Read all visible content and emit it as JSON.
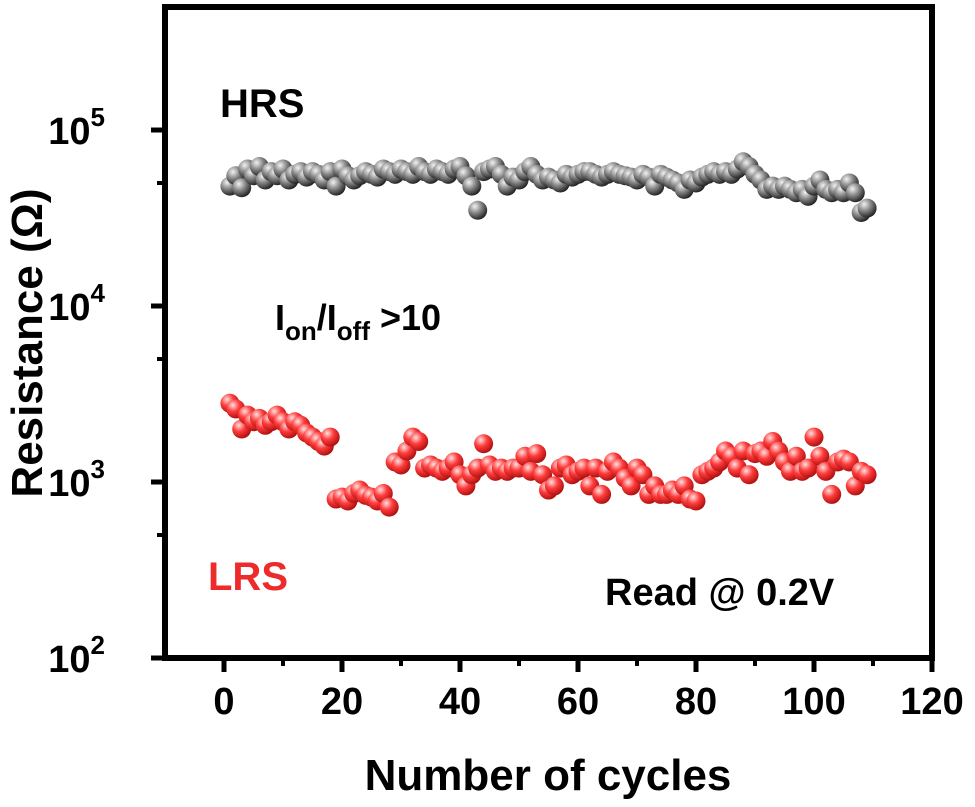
{
  "chart_data": {
    "type": "scatter",
    "title": "",
    "xlabel": "Number of cycles",
    "ylabel": "Resistance (Ω)",
    "xlim": [
      -10,
      120
    ],
    "ylim": [
      100,
      500000
    ],
    "yscale": "log",
    "grid": false,
    "x_ticks": [
      0,
      20,
      40,
      60,
      80,
      100,
      120
    ],
    "y_ticks": [
      {
        "value": 100,
        "base": "10",
        "exp": "2"
      },
      {
        "value": 1000,
        "base": "10",
        "exp": "3"
      },
      {
        "value": 10000,
        "base": "10",
        "exp": "4"
      },
      {
        "value": 100000,
        "base": "10",
        "exp": "5"
      }
    ],
    "series": [
      {
        "name": "HRS",
        "color": "#2b2b2b",
        "x": [
          1,
          2,
          3,
          4,
          5,
          6,
          7,
          8,
          9,
          10,
          11,
          12,
          13,
          14,
          15,
          16,
          17,
          18,
          19,
          20,
          21,
          22,
          23,
          24,
          25,
          26,
          27,
          28,
          29,
          30,
          31,
          32,
          33,
          34,
          35,
          36,
          37,
          38,
          39,
          40,
          41,
          42,
          43,
          44,
          45,
          46,
          47,
          48,
          49,
          50,
          51,
          52,
          53,
          54,
          55,
          56,
          57,
          58,
          59,
          60,
          61,
          62,
          63,
          64,
          65,
          66,
          67,
          68,
          69,
          70,
          71,
          72,
          73,
          74,
          75,
          76,
          77,
          78,
          79,
          80,
          81,
          82,
          83,
          84,
          85,
          86,
          87,
          88,
          89,
          90,
          91,
          92,
          93,
          94,
          95,
          96,
          97,
          98,
          99,
          100,
          101,
          102,
          103,
          104,
          105,
          106,
          107,
          108,
          109
        ],
        "y": [
          48000,
          55000,
          47000,
          60000,
          55000,
          62000,
          52000,
          58000,
          55000,
          60000,
          52000,
          56000,
          58000,
          54000,
          58000,
          56000,
          52000,
          58000,
          48000,
          60000,
          55000,
          52000,
          55000,
          58000,
          56000,
          54000,
          60000,
          58000,
          56000,
          60000,
          58000,
          56000,
          62000,
          58000,
          56000,
          60000,
          58000,
          56000,
          60000,
          62000,
          55000,
          48000,
          35000,
          58000,
          60000,
          62000,
          56000,
          48000,
          54000,
          52000,
          58000,
          62000,
          56000,
          52000,
          54000,
          52000,
          50000,
          56000,
          54000,
          56000,
          58000,
          58000,
          56000,
          54000,
          56000,
          58000,
          56000,
          55000,
          54000,
          52000,
          56000,
          54000,
          48000,
          56000,
          54000,
          52000,
          50000,
          46000,
          52000,
          50000,
          54000,
          56000,
          58000,
          56000,
          58000,
          56000,
          60000,
          66000,
          62000,
          56000,
          52000,
          46000,
          48000,
          46000,
          48000,
          46000,
          44000,
          46000,
          42000,
          48000,
          52000,
          46000,
          44000,
          46000,
          44000,
          50000,
          44000,
          34000,
          36000
        ]
      },
      {
        "name": "LRS",
        "color": "#ee2b2b",
        "x": [
          1,
          2,
          3,
          4,
          5,
          6,
          7,
          8,
          9,
          10,
          11,
          12,
          13,
          14,
          15,
          16,
          17,
          18,
          19,
          20,
          21,
          22,
          23,
          24,
          25,
          26,
          27,
          28,
          29,
          30,
          31,
          32,
          33,
          34,
          35,
          36,
          37,
          38,
          39,
          40,
          41,
          42,
          43,
          44,
          45,
          46,
          47,
          48,
          49,
          50,
          51,
          52,
          53,
          54,
          55,
          56,
          57,
          58,
          59,
          60,
          61,
          62,
          63,
          64,
          65,
          66,
          67,
          68,
          69,
          70,
          71,
          72,
          73,
          74,
          75,
          76,
          77,
          78,
          79,
          80,
          81,
          82,
          83,
          84,
          85,
          86,
          87,
          88,
          89,
          90,
          91,
          92,
          93,
          94,
          95,
          96,
          97,
          98,
          99,
          100,
          101,
          102,
          103,
          104,
          105,
          106,
          107,
          108,
          109
        ],
        "y": [
          2800,
          2600,
          2000,
          2400,
          2200,
          2300,
          2100,
          2200,
          2400,
          2200,
          2000,
          2200,
          2100,
          1900,
          1800,
          1700,
          1600,
          1800,
          800,
          820,
          780,
          860,
          900,
          840,
          820,
          780,
          860,
          720,
          1300,
          1250,
          1500,
          1800,
          1700,
          1200,
          1250,
          1200,
          1150,
          1200,
          1300,
          1100,
          950,
          1100,
          1200,
          1650,
          1250,
          1150,
          1200,
          1150,
          1200,
          1200,
          1400,
          1150,
          1450,
          1100,
          900,
          950,
          1200,
          1250,
          1100,
          1150,
          1200,
          950,
          1200,
          850,
          1150,
          1300,
          1200,
          1050,
          950,
          1200,
          1100,
          850,
          950,
          850,
          850,
          900,
          850,
          950,
          800,
          780,
          1100,
          1150,
          1200,
          1300,
          1500,
          1400,
          1200,
          1500,
          1100,
          1450,
          1500,
          1400,
          1700,
          1500,
          1300,
          1150,
          1400,
          1150,
          1200,
          1800,
          1400,
          1150,
          850,
          1300,
          1350,
          1300,
          950,
          1150,
          1100
        ]
      }
    ],
    "annotations": {
      "hrs_label": "HRS",
      "lrs_label": "LRS",
      "ratio_I1": "I",
      "ratio_on": "on",
      "ratio_slash": "/I",
      "ratio_off": "off",
      "ratio_tail": " >10",
      "read_label": "Read @ 0.2V"
    }
  }
}
